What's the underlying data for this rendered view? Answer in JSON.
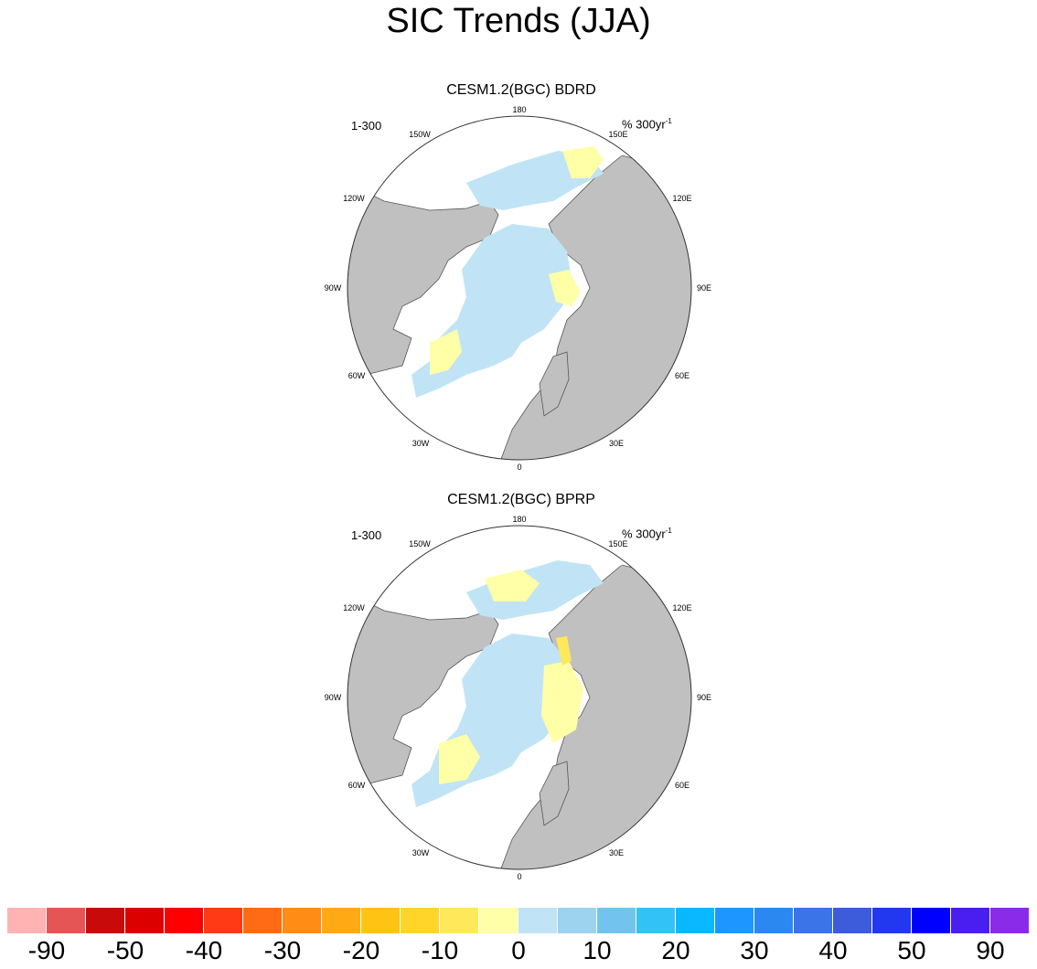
{
  "title": "SIC Trends (JJA)",
  "panels": [
    {
      "title": "CESM1.2(BGC) BDRD",
      "period": "1-300",
      "unit_main": "% 300yr",
      "unit_exp": "-1"
    },
    {
      "title": "CESM1.2(BGC) BPRP",
      "period": "1-300",
      "unit_main": "% 300yr",
      "unit_exp": "-1"
    }
  ],
  "lon_labels": [
    "180",
    "150E",
    "120E",
    "90E",
    "60E",
    "30E",
    "0",
    "30W",
    "60W",
    "90W",
    "120W",
    "150W"
  ],
  "colorbar": {
    "colors": [
      "#ffb3b3",
      "#e65555",
      "#c80a0a",
      "#dd0000",
      "#ff0000",
      "#ff3a14",
      "#ff6a14",
      "#ff8c14",
      "#ffaa14",
      "#ffc314",
      "#ffd52a",
      "#ffe85a",
      "#ffffa8",
      "#c0e4f6",
      "#9dd3ef",
      "#72c4ef",
      "#33c2f5",
      "#0ab8ff",
      "#1e96ff",
      "#2a88f0",
      "#3a74e8",
      "#3c5cdc",
      "#2237f0",
      "#0000ff",
      "#4a1ef0",
      "#8a2bea"
    ],
    "labels": [
      "-90",
      "-50",
      "-40",
      "-30",
      "-20",
      "-10",
      "0",
      "10",
      "20",
      "30",
      "40",
      "50",
      "90"
    ]
  },
  "colors": {
    "land": "#c0c0c0",
    "ice_positive": "#c0e4f6",
    "ice_negative": "#ffffa8"
  }
}
